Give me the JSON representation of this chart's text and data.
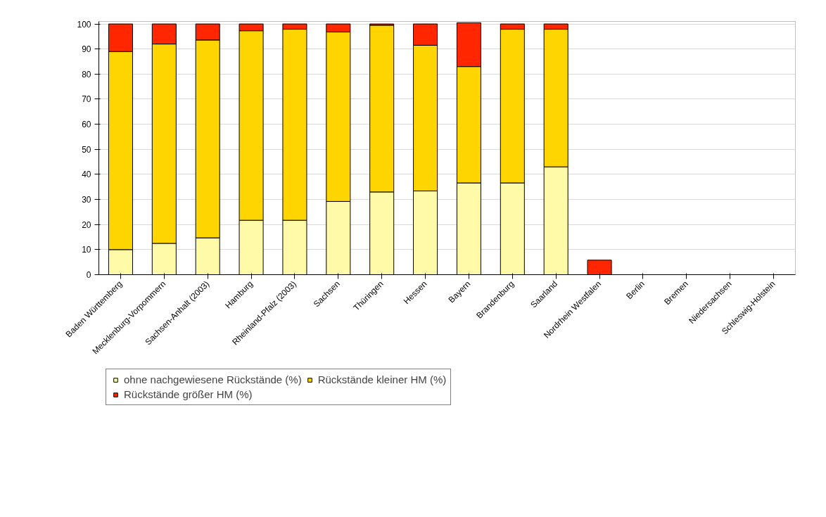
{
  "chart_data": {
    "type": "bar",
    "stacked": true,
    "categories": [
      "Baden Württemberg",
      "Mecklenburg-Vorpommern",
      "Sachsen-Anhalt (2003)",
      "Hamburg",
      "Rheinland-Pfalz (2003)",
      "Sachsen",
      "Thüringen",
      "Hessen",
      "Bayern",
      "Brandenburg",
      "Saarland",
      "Nordrhein Westfalen",
      "Berlin",
      "Bremen",
      "Niedersachsen",
      "Schleswig-Holstein"
    ],
    "series": [
      {
        "name": "ohne nachgewiesene Rückstände (%)",
        "color": "#fffaa8",
        "values": [
          10,
          12.5,
          14.7,
          21.7,
          21.7,
          29.2,
          33,
          33.4,
          36.6,
          36.6,
          43,
          0,
          0,
          0,
          0,
          0
        ]
      },
      {
        "name": "Rückstände kleiner HM (%)",
        "color": "#ffd500",
        "values": [
          79,
          79.5,
          78.9,
          75.6,
          76.2,
          67.6,
          66.5,
          58.1,
          46.4,
          61.3,
          54.9,
          0,
          0,
          0,
          0,
          0
        ]
      },
      {
        "name": "Rückstände größer HM (%)",
        "color": "#ff2600",
        "values": [
          11,
          8,
          6.4,
          2.7,
          2.1,
          3.2,
          0.5,
          8.5,
          17.5,
          2.1,
          2.1,
          5.8,
          0,
          0,
          0,
          0
        ]
      }
    ],
    "ylim": [
      0,
      101
    ],
    "yticks": [
      0,
      10,
      20,
      30,
      40,
      50,
      60,
      70,
      80,
      90,
      100
    ],
    "grid": "y",
    "legend": "bottom"
  }
}
